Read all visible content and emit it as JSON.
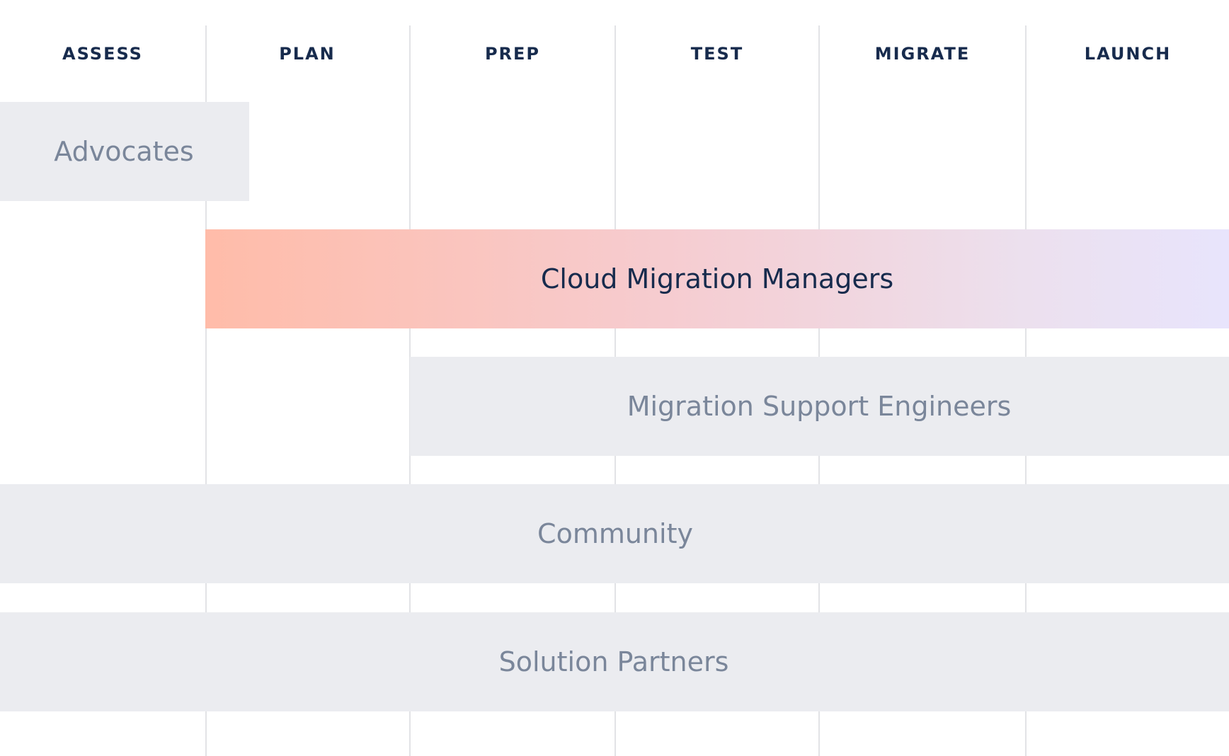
{
  "phases": [
    "ASSESS",
    "PLAN",
    "PREP",
    "TEST",
    "MIGRATE",
    "LAUNCH"
  ],
  "roles": [
    "Advocates",
    "Cloud Migration Managers",
    "Migration Support Engineers",
    "Community",
    "Solution Partners"
  ]
}
